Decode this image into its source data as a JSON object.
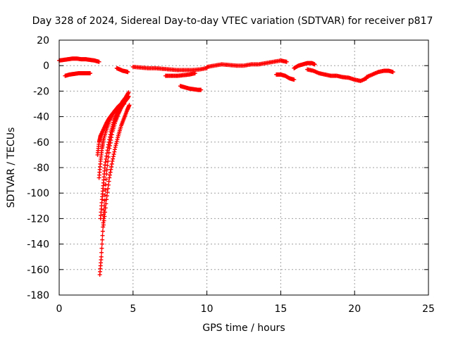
{
  "chart_data": {
    "type": "scatter",
    "title": "Day 328 of 2024, Sidereal Day-to-day VTEC variation (SDTVAR) for receiver p817",
    "xlabel": "GPS time / hours",
    "ylabel": "SDTVAR / TECUs",
    "xlim": [
      0,
      25
    ],
    "ylim": [
      -180,
      20
    ],
    "xticks": [
      0,
      5,
      10,
      15,
      20,
      25
    ],
    "yticks": [
      20,
      0,
      -20,
      -40,
      -60,
      -80,
      -100,
      -120,
      -140,
      -160,
      -180
    ],
    "grid": true,
    "marker": "plus",
    "color": "#ff0000",
    "series": [
      {
        "name": "arc-top-left",
        "x": [
          0.0,
          0.3,
          0.6,
          0.9,
          1.2,
          1.5,
          1.8,
          2.1,
          2.4,
          2.7
        ],
        "y": [
          4,
          4.5,
          5,
          5.5,
          5.5,
          5,
          5,
          4.5,
          4,
          3
        ]
      },
      {
        "name": "arc-low-left",
        "x": [
          0.4,
          0.7,
          1.0,
          1.3,
          1.6,
          1.9,
          2.1
        ],
        "y": [
          -8,
          -7,
          -6.5,
          -6,
          -6,
          -6,
          -6
        ]
      },
      {
        "name": "arc-steep-1",
        "x": [
          2.75,
          2.85,
          2.95,
          3.05,
          3.2,
          3.4,
          3.6,
          3.8,
          4.0,
          4.2,
          4.4,
          4.6,
          4.7
        ],
        "y": [
          -164,
          -150,
          -130,
          -110,
          -85,
          -65,
          -52,
          -44,
          -38,
          -33,
          -29,
          -26,
          -24
        ]
      },
      {
        "name": "arc-steep-2",
        "x": [
          2.8,
          2.9,
          3.0,
          3.1,
          3.3,
          3.5,
          3.7,
          3.9,
          4.1,
          4.3,
          4.5,
          4.7
        ],
        "y": [
          -120,
          -105,
          -92,
          -78,
          -64,
          -52,
          -43,
          -37,
          -32,
          -28,
          -25,
          -21
        ]
      },
      {
        "name": "arc-steep-3",
        "x": [
          2.7,
          2.8,
          2.9,
          3.0,
          3.2,
          3.4,
          3.6,
          3.8,
          4.0,
          4.2,
          4.4,
          4.6
        ],
        "y": [
          -88,
          -75,
          -65,
          -58,
          -50,
          -43,
          -38,
          -35,
          -32,
          -30,
          -28,
          -26
        ]
      },
      {
        "name": "arc-steep-4",
        "x": [
          2.6,
          2.7,
          2.8,
          3.0,
          3.2,
          3.4,
          3.6,
          3.8,
          4.0,
          4.2,
          4.4
        ],
        "y": [
          -70,
          -60,
          -55,
          -50,
          -45,
          -41,
          -38,
          -35,
          -33,
          -31,
          -30
        ]
      },
      {
        "name": "arc-steep-5",
        "x": [
          3.0,
          3.2,
          3.4,
          3.6,
          3.8,
          4.0,
          4.2,
          4.4,
          4.6,
          4.75
        ],
        "y": [
          -125,
          -105,
          -88,
          -75,
          -64,
          -55,
          -47,
          -41,
          -35,
          -31
        ]
      },
      {
        "name": "arc-dip-early",
        "x": [
          3.9,
          4.1,
          4.3,
          4.5,
          4.65
        ],
        "y": [
          -2,
          -3,
          -4,
          -4.5,
          -5
        ]
      },
      {
        "name": "arc-main-flat",
        "x": [
          5.0,
          5.5,
          6.0,
          6.5,
          7.0,
          7.5,
          8.0,
          8.5,
          9.0,
          9.5,
          10.0
        ],
        "y": [
          -1,
          -1.5,
          -2,
          -2,
          -2.5,
          -3,
          -3.5,
          -3.5,
          -3.5,
          -3,
          -2
        ]
      },
      {
        "name": "arc-low-mid",
        "x": [
          7.2,
          7.6,
          8.0,
          8.4,
          8.8,
          9.2
        ],
        "y": [
          -8,
          -8,
          -8,
          -7.5,
          -7,
          -6
        ]
      },
      {
        "name": "arc-dip-mid",
        "x": [
          8.2,
          8.5,
          8.8,
          9.1,
          9.4,
          9.6
        ],
        "y": [
          -16,
          -17,
          -18,
          -18.5,
          -19,
          -19
        ]
      },
      {
        "name": "arc-main-right",
        "x": [
          10.0,
          10.5,
          11.0,
          11.5,
          12.0,
          12.5,
          13.0,
          13.5,
          14.0,
          14.5,
          15.0,
          15.4
        ],
        "y": [
          -1,
          0,
          1,
          0.5,
          0,
          0,
          1,
          1,
          2,
          3,
          4,
          3
        ]
      },
      {
        "name": "arc-dip-right",
        "x": [
          14.7,
          15.0,
          15.3,
          15.6,
          15.9
        ],
        "y": [
          -7,
          -7,
          -8,
          -10,
          -11
        ]
      },
      {
        "name": "arc-hump",
        "x": [
          15.9,
          16.2,
          16.5,
          16.8,
          17.1,
          17.3
        ],
        "y": [
          -2,
          0,
          1,
          2,
          2,
          1
        ]
      },
      {
        "name": "arc-fall",
        "x": [
          16.8,
          17.2,
          17.6,
          18.0,
          18.4,
          18.8,
          19.2
        ],
        "y": [
          -3,
          -4,
          -6,
          -7,
          -8,
          -8,
          -9
        ]
      },
      {
        "name": "arc-end-low",
        "x": [
          19.2,
          19.6,
          20.0,
          20.4,
          20.8
        ],
        "y": [
          -9,
          -9.5,
          -11,
          -12,
          -10
        ]
      },
      {
        "name": "arc-end-rise",
        "x": [
          20.8,
          21.2,
          21.6,
          22.0,
          22.3,
          22.6
        ],
        "y": [
          -9,
          -7,
          -5,
          -4,
          -4,
          -5
        ]
      }
    ]
  }
}
